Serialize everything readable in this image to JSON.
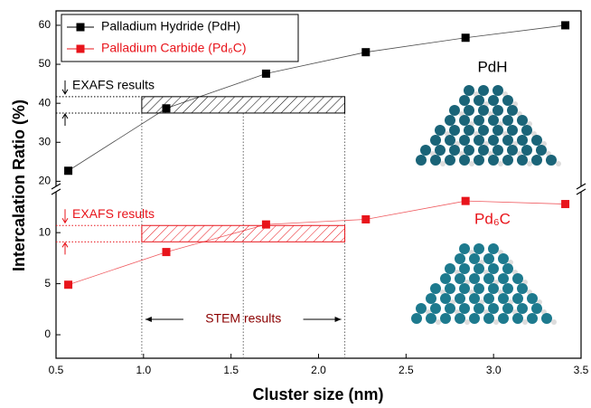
{
  "chart_data": {
    "type": "line",
    "x_label": "Cluster size (nm)",
    "y_label": "Intercalation Ratio (%)",
    "x": [
      0.57,
      1.13,
      1.7,
      2.27,
      2.84,
      3.41
    ],
    "series": [
      {
        "name": "Palladium Hydride (PdH)",
        "color": "#000000",
        "values": [
          22.7,
          38.7,
          47.6,
          53.1,
          56.8,
          60.0
        ]
      },
      {
        "name": "Palladium Carbide (Pd₆C)",
        "color": "#e8141b",
        "axis": "y2",
        "values": [
          4.9,
          8.1,
          10.8,
          11.3,
          13.1,
          12.8
        ]
      }
    ],
    "xlim": [
      0.5,
      3.5
    ],
    "xticks": [
      0.5,
      {
        "value": 1.0,
        "label": "1.0"
      },
      1.5,
      {
        "value": 2.0,
        "label": "2.0"
      },
      2.5,
      {
        "value": 3.0,
        "label": "3.0"
      },
      3.5
    ],
    "ylim": [
      18.7,
      63.7
    ],
    "yticks": [
      20,
      30,
      40,
      50,
      60
    ],
    "y2lim": [
      -2.3,
      14
    ],
    "y2ticks": [
      0,
      5,
      10
    ],
    "legend": "upper left",
    "exafs_bands": [
      {
        "label": "EXAFS results",
        "x": [
          0.99,
          2.15
        ],
        "y": [
          37.5,
          41.7
        ]
      },
      {
        "label": "EXAFS results",
        "axis": "y2",
        "x": [
          0.99,
          2.15
        ],
        "y": [
          9.1,
          10.7
        ]
      }
    ],
    "stem": {
      "label": "STEM results",
      "x": [
        0.99,
        1.57,
        2.15
      ]
    },
    "insets": [
      "PdH",
      "Pd₆C"
    ]
  }
}
